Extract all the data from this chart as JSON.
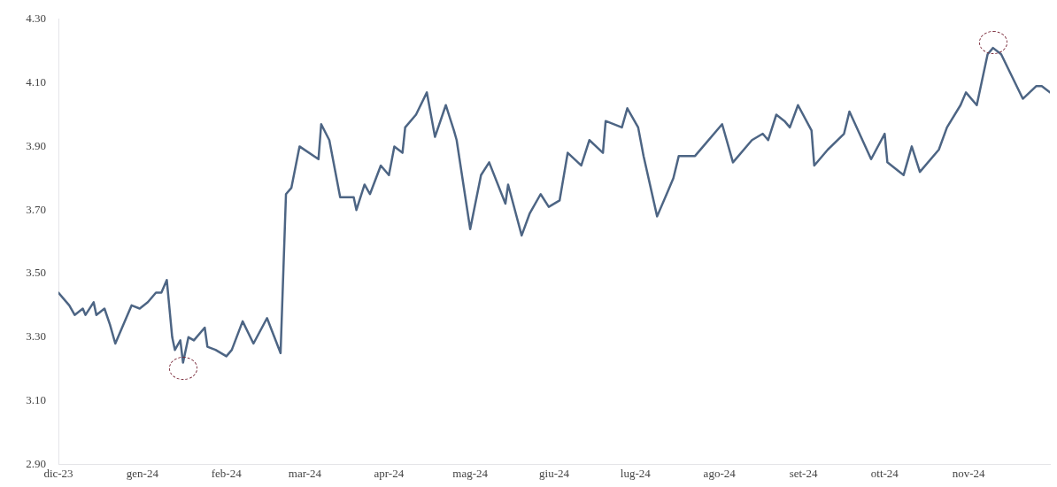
{
  "chart_data": {
    "type": "line",
    "x": [
      "2023-12-01",
      "2023-12-05",
      "2023-12-07",
      "2023-12-10",
      "2023-12-11",
      "2023-12-14",
      "2023-12-15",
      "2023-12-18",
      "2023-12-20",
      "2023-12-22",
      "2023-12-26",
      "2023-12-28",
      "2023-12-31",
      "2024-01-03",
      "2024-01-06",
      "2024-01-08",
      "2024-01-10",
      "2024-01-12",
      "2024-01-13",
      "2024-01-15",
      "2024-01-16",
      "2024-01-18",
      "2024-01-20",
      "2024-01-24",
      "2024-01-25",
      "2024-01-28",
      "2024-02-01",
      "2024-02-03",
      "2024-02-07",
      "2024-02-11",
      "2024-02-16",
      "2024-02-21",
      "2024-02-23",
      "2024-02-25",
      "2024-02-28",
      "2024-03-06",
      "2024-03-07",
      "2024-03-10",
      "2024-03-14",
      "2024-03-19",
      "2024-03-20",
      "2024-03-23",
      "2024-03-25",
      "2024-03-29",
      "2024-04-01",
      "2024-04-03",
      "2024-04-06",
      "2024-04-07",
      "2024-04-11",
      "2024-04-15",
      "2024-04-18",
      "2024-04-22",
      "2024-04-25",
      "2024-04-26",
      "2024-05-01",
      "2024-05-05",
      "2024-05-08",
      "2024-05-14",
      "2024-05-15",
      "2024-05-20",
      "2024-05-23",
      "2024-05-27",
      "2024-05-30",
      "2024-06-03",
      "2024-06-06",
      "2024-06-11",
      "2024-06-14",
      "2024-06-19",
      "2024-06-20",
      "2024-06-26",
      "2024-06-28",
      "2024-07-02",
      "2024-07-04",
      "2024-07-09",
      "2024-07-13",
      "2024-07-15",
      "2024-07-17",
      "2024-07-23",
      "2024-07-26",
      "2024-08-02",
      "2024-08-06",
      "2024-08-13",
      "2024-08-17",
      "2024-08-19",
      "2024-08-22",
      "2024-08-25",
      "2024-08-27",
      "2024-08-30",
      "2024-09-04",
      "2024-09-05",
      "2024-09-10",
      "2024-09-16",
      "2024-09-18",
      "2024-09-26",
      "2024-10-01",
      "2024-10-02",
      "2024-10-08",
      "2024-10-11",
      "2024-10-14",
      "2024-10-21",
      "2024-10-24",
      "2024-10-29",
      "2024-10-31",
      "2024-11-04",
      "2024-11-08",
      "2024-11-10",
      "2024-11-13",
      "2024-11-21",
      "2024-11-26",
      "2024-11-28",
      "2024-12-01"
    ],
    "series": [
      {
        "color": "#4d6584",
        "values": [
          3.44,
          3.4,
          3.37,
          3.39,
          3.37,
          3.41,
          3.37,
          3.39,
          3.34,
          3.28,
          3.36,
          3.4,
          3.39,
          3.41,
          3.44,
          3.44,
          3.48,
          3.3,
          3.26,
          3.29,
          3.22,
          3.3,
          3.29,
          3.33,
          3.27,
          3.26,
          3.24,
          3.26,
          3.35,
          3.28,
          3.36,
          3.25,
          3.75,
          3.77,
          3.9,
          3.86,
          3.97,
          3.92,
          3.74,
          3.74,
          3.7,
          3.78,
          3.75,
          3.84,
          3.81,
          3.9,
          3.88,
          3.96,
          4.0,
          4.07,
          3.93,
          4.03,
          3.95,
          3.92,
          3.64,
          3.81,
          3.85,
          3.72,
          3.78,
          3.62,
          3.69,
          3.75,
          3.71,
          3.73,
          3.88,
          3.84,
          3.92,
          3.88,
          3.98,
          3.96,
          4.02,
          3.96,
          3.87,
          3.68,
          3.76,
          3.8,
          3.87,
          3.87,
          3.9,
          3.97,
          3.85,
          3.92,
          3.94,
          3.92,
          4.0,
          3.98,
          3.96,
          4.03,
          3.95,
          3.84,
          3.89,
          3.94,
          4.01,
          3.86,
          3.94,
          3.85,
          3.81,
          3.9,
          3.82,
          3.89,
          3.96,
          4.03,
          4.07,
          4.03,
          4.19,
          4.21,
          4.19,
          4.05,
          4.09,
          4.09,
          4.07
        ]
      }
    ],
    "xlim": [
      "2023-12-01",
      "2024-12-01"
    ],
    "xticks": [
      {
        "value": "2023-12-01",
        "label": "dic-23"
      },
      {
        "value": "2024-01-01",
        "label": "gen-24"
      },
      {
        "value": "2024-02-01",
        "label": "feb-24"
      },
      {
        "value": "2024-03-01",
        "label": "mar-24"
      },
      {
        "value": "2024-04-01",
        "label": "apr-24"
      },
      {
        "value": "2024-05-01",
        "label": "mag-24"
      },
      {
        "value": "2024-06-01",
        "label": "giu-24"
      },
      {
        "value": "2024-07-01",
        "label": "lug-24"
      },
      {
        "value": "2024-08-01",
        "label": "ago-24"
      },
      {
        "value": "2024-09-01",
        "label": "set-24"
      },
      {
        "value": "2024-10-01",
        "label": "ott-24"
      },
      {
        "value": "2024-11-01",
        "label": "nov-24"
      }
    ],
    "ylim": [
      2.9,
      4.3
    ],
    "yticks": [
      {
        "value": 2.9,
        "label": "2.90"
      },
      {
        "value": 3.1,
        "label": "3.10"
      },
      {
        "value": 3.3,
        "label": "3.30"
      },
      {
        "value": 3.5,
        "label": "3.50"
      },
      {
        "value": 3.7,
        "label": "3.70"
      },
      {
        "value": 3.9,
        "label": "3.90"
      },
      {
        "value": 4.1,
        "label": "4.10"
      },
      {
        "value": 4.3,
        "label": "4.30"
      }
    ],
    "grid": false,
    "legend": false,
    "marker": "none",
    "line_style": "solid"
  }
}
